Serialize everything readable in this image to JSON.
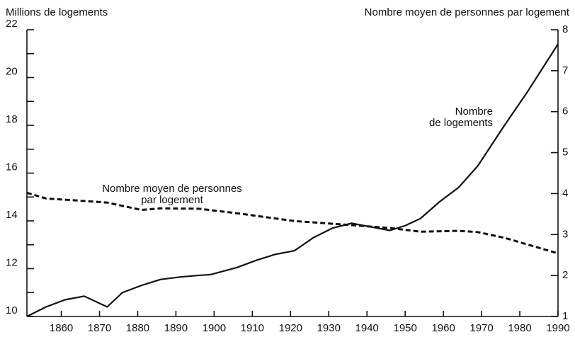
{
  "chart_data": {
    "type": "line",
    "ylabel": "Millions de logements",
    "y2label": "Nombre moyen de personnes par logement",
    "xlim": [
      1851,
      1990
    ],
    "xticks": [
      1860,
      1870,
      1880,
      1890,
      1900,
      1910,
      1920,
      1930,
      1940,
      1950,
      1960,
      1970,
      1980,
      1990
    ],
    "ylim": [
      10,
      22
    ],
    "yticks": [
      10,
      12,
      14,
      16,
      18,
      20,
      22
    ],
    "y2lim": [
      1,
      8
    ],
    "y2ticks": [
      1,
      2,
      3,
      4,
      5,
      6,
      7,
      8
    ],
    "series": [
      {
        "color": "#111111",
        "dashed": false,
        "x": [
          1851,
          1856,
          1861,
          1866,
          1872,
          1876,
          1881,
          1886,
          1891,
          1896,
          1899,
          1906,
          1911,
          1916,
          1921,
          1926,
          1931,
          1936,
          1946,
          1950,
          1954,
          1959,
          1964,
          1969,
          1976,
          1982,
          1990
        ],
        "values": [
          10.0,
          10.4,
          10.7,
          10.85,
          10.4,
          11.0,
          11.3,
          11.55,
          11.65,
          11.72,
          11.75,
          12.05,
          12.35,
          12.6,
          12.75,
          13.3,
          13.7,
          13.9,
          13.6,
          13.8,
          14.1,
          14.8,
          15.4,
          16.3,
          18.0,
          19.4,
          21.4
        ]
      },
      {
        "color": "#111111",
        "dashed": true,
        "axis": "y2",
        "x": [
          1851,
          1856,
          1866,
          1872,
          1881,
          1886,
          1896,
          1906,
          1921,
          1936,
          1946,
          1954,
          1964,
          1969,
          1976,
          1990
        ],
        "values": [
          4.02,
          3.88,
          3.82,
          3.78,
          3.6,
          3.64,
          3.63,
          3.52,
          3.33,
          3.23,
          3.16,
          3.07,
          3.09,
          3.06,
          2.92,
          2.54
        ]
      }
    ],
    "annotations": [
      {
        "lines": [
          "Nombre",
          "de logements"
        ],
        "series": 0
      },
      {
        "lines": [
          "Nombre moyen de personnes",
          "par logement"
        ],
        "series": 1
      }
    ]
  }
}
